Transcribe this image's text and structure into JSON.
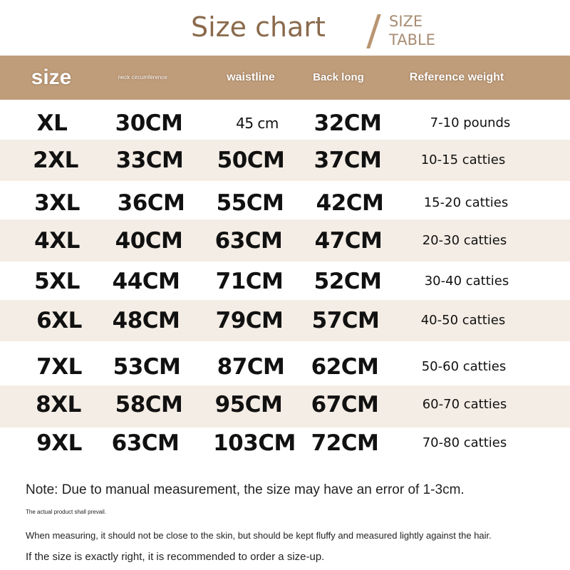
{
  "header": {
    "title": "Size chart",
    "subtitle_line1": "SIZE",
    "subtitle_line2": "TABLE"
  },
  "columns": [
    "size",
    "neck circumference",
    "waistline",
    "Back long",
    "Reference weight"
  ],
  "colors": {
    "header_band": "#bf9c7a",
    "stripe": "#f4ede5",
    "title": "#8a6a4c"
  },
  "rows": [
    [
      "XL",
      "30CM",
      "45 cm",
      "32CM",
      "7-10 pounds"
    ],
    [
      "2XL",
      "33CM",
      "50CM",
      "37CM",
      "10-15 catties"
    ],
    [
      "3XL",
      "36CM",
      "55CM",
      "42CM",
      "15-20 catties"
    ],
    [
      "4XL",
      "40CM",
      "63CM",
      "47CM",
      "20-30 catties"
    ],
    [
      "5XL",
      "44CM",
      "71CM",
      "52CM",
      "30-40 catties"
    ],
    [
      "6XL",
      "48CM",
      "79CM",
      "57CM",
      "40-50 catties"
    ],
    [
      "7XL",
      "53CM",
      "87CM",
      "62CM",
      "50-60 catties"
    ],
    [
      "8XL",
      "58CM",
      "95CM",
      "67CM",
      "60-70 catties"
    ],
    [
      "9XL",
      "63CM",
      "103CM",
      "72CM",
      "70-80 catties"
    ]
  ],
  "notes": {
    "main": "Note: Due to manual measurement, the size may have an error of 1-3cm.",
    "small": "The actual product shall prevail.",
    "measuring": "When measuring, it should not be close to the skin, but should be kept fluffy and measured lightly against the hair.",
    "sizeup": "If the size is exactly right, it is recommended to order a size-up."
  }
}
